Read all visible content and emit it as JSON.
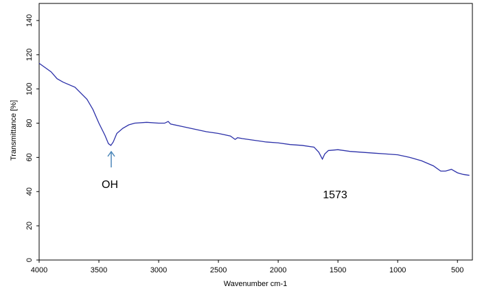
{
  "chart_data": {
    "type": "line",
    "x_label": "Wavenumber cm-1",
    "y_label": "Transmittance [%]",
    "annotations": [
      "OH",
      "1573"
    ],
    "xlim": [
      4000,
      375
    ],
    "ylim": [
      0,
      150
    ],
    "xticks": [
      4000,
      3500,
      3000,
      2500,
      2000,
      1500,
      1000,
      500
    ],
    "yticks": [
      0,
      20,
      40,
      60,
      80,
      100,
      120,
      140
    ],
    "color": "#2a2fa8",
    "x": [
      4000,
      3900,
      3850,
      3800,
      3700,
      3600,
      3550,
      3500,
      3450,
      3420,
      3400,
      3380,
      3350,
      3300,
      3250,
      3200,
      3100,
      3000,
      2950,
      2920,
      2900,
      2800,
      2700,
      2600,
      2500,
      2400,
      2360,
      2340,
      2300,
      2200,
      2100,
      2000,
      1900,
      1800,
      1700,
      1660,
      1630,
      1610,
      1580,
      1500,
      1400,
      1300,
      1200,
      1100,
      1000,
      900,
      800,
      700,
      640,
      600,
      550,
      500,
      450,
      400
    ],
    "values": [
      115,
      110,
      106,
      104,
      101,
      94,
      88,
      80,
      73,
      68,
      67,
      69,
      74,
      77,
      79,
      80,
      80.5,
      80,
      80,
      81,
      79.5,
      78,
      76.5,
      75,
      74,
      72.5,
      70.5,
      71.5,
      71,
      70,
      69,
      68.5,
      67.5,
      67,
      66,
      63,
      59,
      62,
      64,
      64.5,
      63.5,
      63,
      62.5,
      62,
      61.5,
      60,
      58,
      55,
      52,
      52,
      53,
      51,
      50,
      49.5
    ]
  }
}
